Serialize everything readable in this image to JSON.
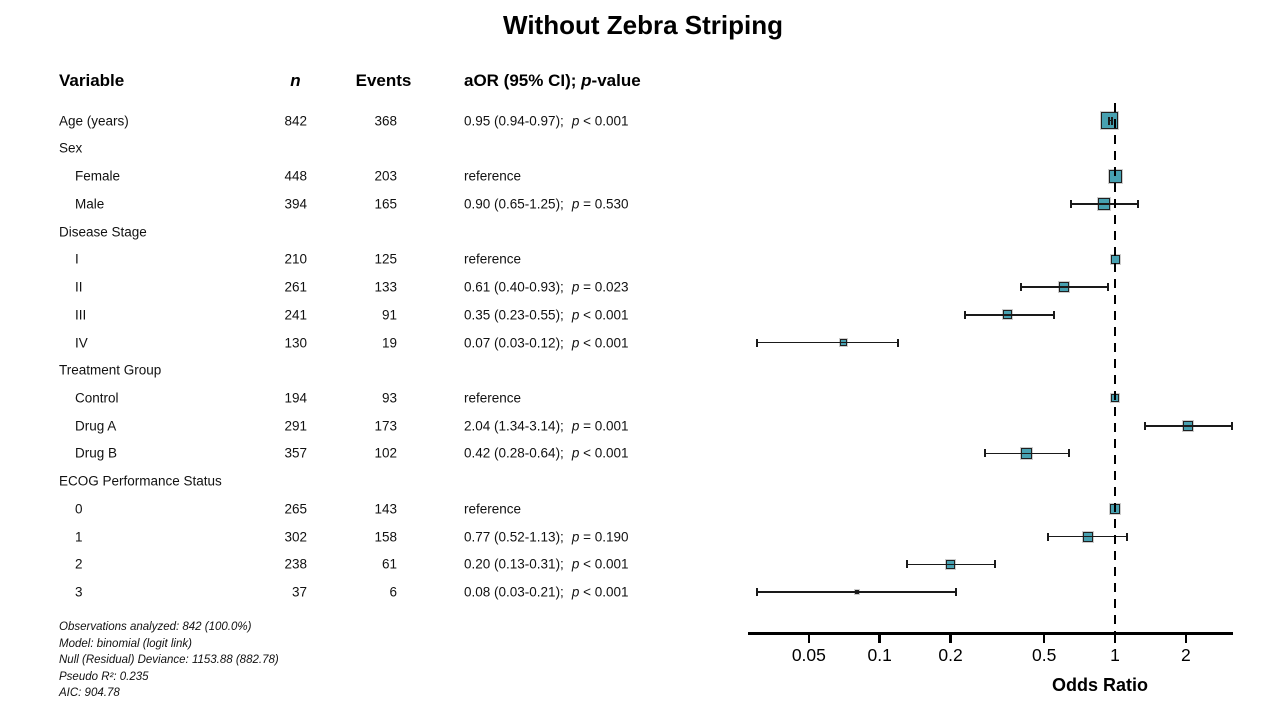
{
  "title": "Without Zebra Striping",
  "table": {
    "headers": {
      "variable": "Variable",
      "n": "n",
      "events": "Events",
      "aor_prefix": "aOR (95% CI); ",
      "aor_p": "p",
      "aor_suffix": "-value"
    },
    "rows": [
      {
        "type": "data",
        "label": "Age (years)",
        "indent": 0,
        "n": "842",
        "events": "368",
        "ci": "0.95 (0.94-0.97);",
        "p": "p < 0.001",
        "or": 0.95,
        "lo": 0.94,
        "hi": 0.97
      },
      {
        "type": "group",
        "label": "Sex"
      },
      {
        "type": "data",
        "label": "Female",
        "indent": 1,
        "n": "448",
        "events": "203",
        "ci": "reference",
        "ref": true,
        "or": 1.0
      },
      {
        "type": "data",
        "label": "Male",
        "indent": 1,
        "n": "394",
        "events": "165",
        "ci": "0.90 (0.65-1.25);",
        "p": "p = 0.530",
        "or": 0.9,
        "lo": 0.65,
        "hi": 1.25
      },
      {
        "type": "group",
        "label": "Disease Stage"
      },
      {
        "type": "data",
        "label": "I",
        "indent": 1,
        "n": "210",
        "events": "125",
        "ci": "reference",
        "ref": true,
        "or": 1.0
      },
      {
        "type": "data",
        "label": "II",
        "indent": 1,
        "n": "261",
        "events": "133",
        "ci": "0.61 (0.40-0.93);",
        "p": "p = 0.023",
        "or": 0.61,
        "lo": 0.4,
        "hi": 0.93
      },
      {
        "type": "data",
        "label": "III",
        "indent": 1,
        "n": "241",
        "events": "91",
        "ci": "0.35 (0.23-0.55);",
        "p": "p < 0.001",
        "or": 0.35,
        "lo": 0.23,
        "hi": 0.55
      },
      {
        "type": "data",
        "label": "IV",
        "indent": 1,
        "n": "130",
        "events": "19",
        "ci": "0.07 (0.03-0.12);",
        "p": "p < 0.001",
        "or": 0.07,
        "lo": 0.03,
        "hi": 0.12
      },
      {
        "type": "group",
        "label": "Treatment Group"
      },
      {
        "type": "data",
        "label": "Control",
        "indent": 1,
        "n": "194",
        "events": "93",
        "ci": "reference",
        "ref": true,
        "or": 1.0
      },
      {
        "type": "data",
        "label": "Drug A",
        "indent": 1,
        "n": "291",
        "events": "173",
        "ci": "2.04 (1.34-3.14);",
        "p": "p = 0.001",
        "or": 2.04,
        "lo": 1.34,
        "hi": 3.14
      },
      {
        "type": "data",
        "label": "Drug B",
        "indent": 1,
        "n": "357",
        "events": "102",
        "ci": "0.42 (0.28-0.64);",
        "p": "p < 0.001",
        "or": 0.42,
        "lo": 0.28,
        "hi": 0.64
      },
      {
        "type": "group",
        "label": "ECOG Performance Status"
      },
      {
        "type": "data",
        "label": "0",
        "indent": 1,
        "n": "265",
        "events": "143",
        "ci": "reference",
        "ref": true,
        "or": 1.0
      },
      {
        "type": "data",
        "label": "1",
        "indent": 1,
        "n": "302",
        "events": "158",
        "ci": "0.77 (0.52-1.13);",
        "p": "p = 0.190",
        "or": 0.77,
        "lo": 0.52,
        "hi": 1.13
      },
      {
        "type": "data",
        "label": "2",
        "indent": 1,
        "n": "238",
        "events": "61",
        "ci": "0.20 (0.13-0.31);",
        "p": "p < 0.001",
        "or": 0.2,
        "lo": 0.13,
        "hi": 0.31
      },
      {
        "type": "data",
        "label": "3",
        "indent": 1,
        "n": "37",
        "events": "6",
        "ci": "0.08 (0.03-0.21);",
        "p": "p < 0.001",
        "or": 0.08,
        "lo": 0.03,
        "hi": 0.21
      }
    ]
  },
  "footnotes": [
    "Observations analyzed: 842 (100.0%)",
    "Model: binomial (logit link)",
    "Null (Residual) Deviance: 1153.88 (882.78)",
    "Pseudo R²: 0.235",
    "AIC: 904.78"
  ],
  "axis": {
    "tick_values": [
      0.05,
      0.1,
      0.2,
      0.5,
      1,
      2
    ],
    "tick_labels": [
      "0.05",
      "0.1",
      "0.2",
      "0.5",
      "1",
      "2"
    ],
    "xlabel": "Odds Ratio",
    "scale": "log",
    "reference_line": 1.0
  },
  "colors": {
    "marker_fill": "#47A1B1",
    "marker_edge": "#1f1f1f",
    "text": "#111111",
    "axis": "#000000"
  },
  "chart_data": {
    "type": "scatter",
    "subtype": "forest-plot",
    "title": "Without Zebra Striping",
    "xlabel": "Odds Ratio",
    "x_scale": "log",
    "x_ticks": [
      0.05,
      0.1,
      0.2,
      0.5,
      1,
      2
    ],
    "xlim": [
      0.028,
      3.2
    ],
    "reference_line": 1.0,
    "legend": "none",
    "grid": false,
    "points": [
      {
        "label": "Age (years)",
        "n": 842,
        "events": 368,
        "or": 0.95,
        "ci_low": 0.94,
        "ci_high": 0.97,
        "p": "p < 0.001"
      },
      {
        "label": "Sex: Female",
        "n": 448,
        "events": 203,
        "or": 1.0,
        "reference": true
      },
      {
        "label": "Sex: Male",
        "n": 394,
        "events": 165,
        "or": 0.9,
        "ci_low": 0.65,
        "ci_high": 1.25,
        "p": "p = 0.530"
      },
      {
        "label": "Disease Stage: I",
        "n": 210,
        "events": 125,
        "or": 1.0,
        "reference": true
      },
      {
        "label": "Disease Stage: II",
        "n": 261,
        "events": 133,
        "or": 0.61,
        "ci_low": 0.4,
        "ci_high": 0.93,
        "p": "p = 0.023"
      },
      {
        "label": "Disease Stage: III",
        "n": 241,
        "events": 91,
        "or": 0.35,
        "ci_low": 0.23,
        "ci_high": 0.55,
        "p": "p < 0.001"
      },
      {
        "label": "Disease Stage: IV",
        "n": 130,
        "events": 19,
        "or": 0.07,
        "ci_low": 0.03,
        "ci_high": 0.12,
        "p": "p < 0.001"
      },
      {
        "label": "Treatment Group: Control",
        "n": 194,
        "events": 93,
        "or": 1.0,
        "reference": true
      },
      {
        "label": "Treatment Group: Drug A",
        "n": 291,
        "events": 173,
        "or": 2.04,
        "ci_low": 1.34,
        "ci_high": 3.14,
        "p": "p = 0.001"
      },
      {
        "label": "Treatment Group: Drug B",
        "n": 357,
        "events": 102,
        "or": 0.42,
        "ci_low": 0.28,
        "ci_high": 0.64,
        "p": "p < 0.001"
      },
      {
        "label": "ECOG Performance Status: 0",
        "n": 265,
        "events": 143,
        "or": 1.0,
        "reference": true
      },
      {
        "label": "ECOG Performance Status: 1",
        "n": 302,
        "events": 158,
        "or": 0.77,
        "ci_low": 0.52,
        "ci_high": 1.13,
        "p": "p = 0.190"
      },
      {
        "label": "ECOG Performance Status: 2",
        "n": 238,
        "events": 61,
        "or": 0.2,
        "ci_low": 0.13,
        "ci_high": 0.31,
        "p": "p < 0.001"
      },
      {
        "label": "ECOG Performance Status: 3",
        "n": 37,
        "events": 6,
        "or": 0.08,
        "ci_low": 0.03,
        "ci_high": 0.21,
        "p": "p < 0.001"
      }
    ]
  }
}
